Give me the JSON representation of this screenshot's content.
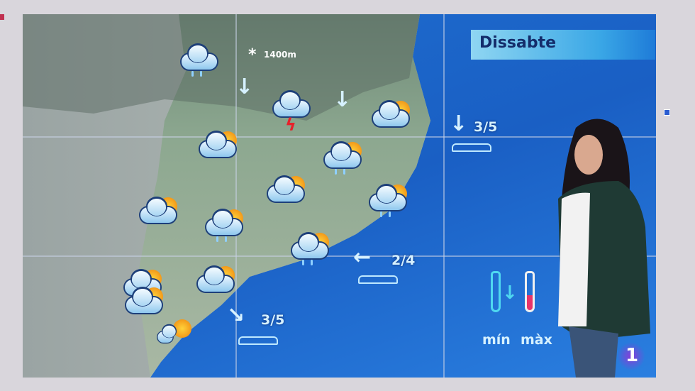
{
  "broadcast": {
    "day_title": "Dissabte",
    "channel_logo": "1",
    "altitude_label": "1400m",
    "legend": {
      "min_label": "mín",
      "max_label": "màx"
    }
  },
  "sea_states": [
    {
      "direction": "down-arrow",
      "value": "3/5"
    },
    {
      "direction": "left-arrow",
      "value": "2/4"
    },
    {
      "direction": "down-right-arrow",
      "value": "3/5"
    }
  ],
  "weather_icons": [
    "cloud-rain",
    "snow-marker",
    "cloud-storm",
    "cloud-sun",
    "cloud-sun",
    "cloud-sun-rain",
    "cloud-sun",
    "cloud-sun",
    "cloud-sun-rain",
    "cloud-sun-rain",
    "cloud-sun-rain",
    "cloud-sun-rain",
    "cloud-sun",
    "cloud-sun",
    "sun-cloud-small"
  ],
  "colors": {
    "sea": "#1a5fc4",
    "title_bg": "#8fd6f2",
    "title_text": "#142c6a",
    "logo": "#8a3cd8"
  }
}
